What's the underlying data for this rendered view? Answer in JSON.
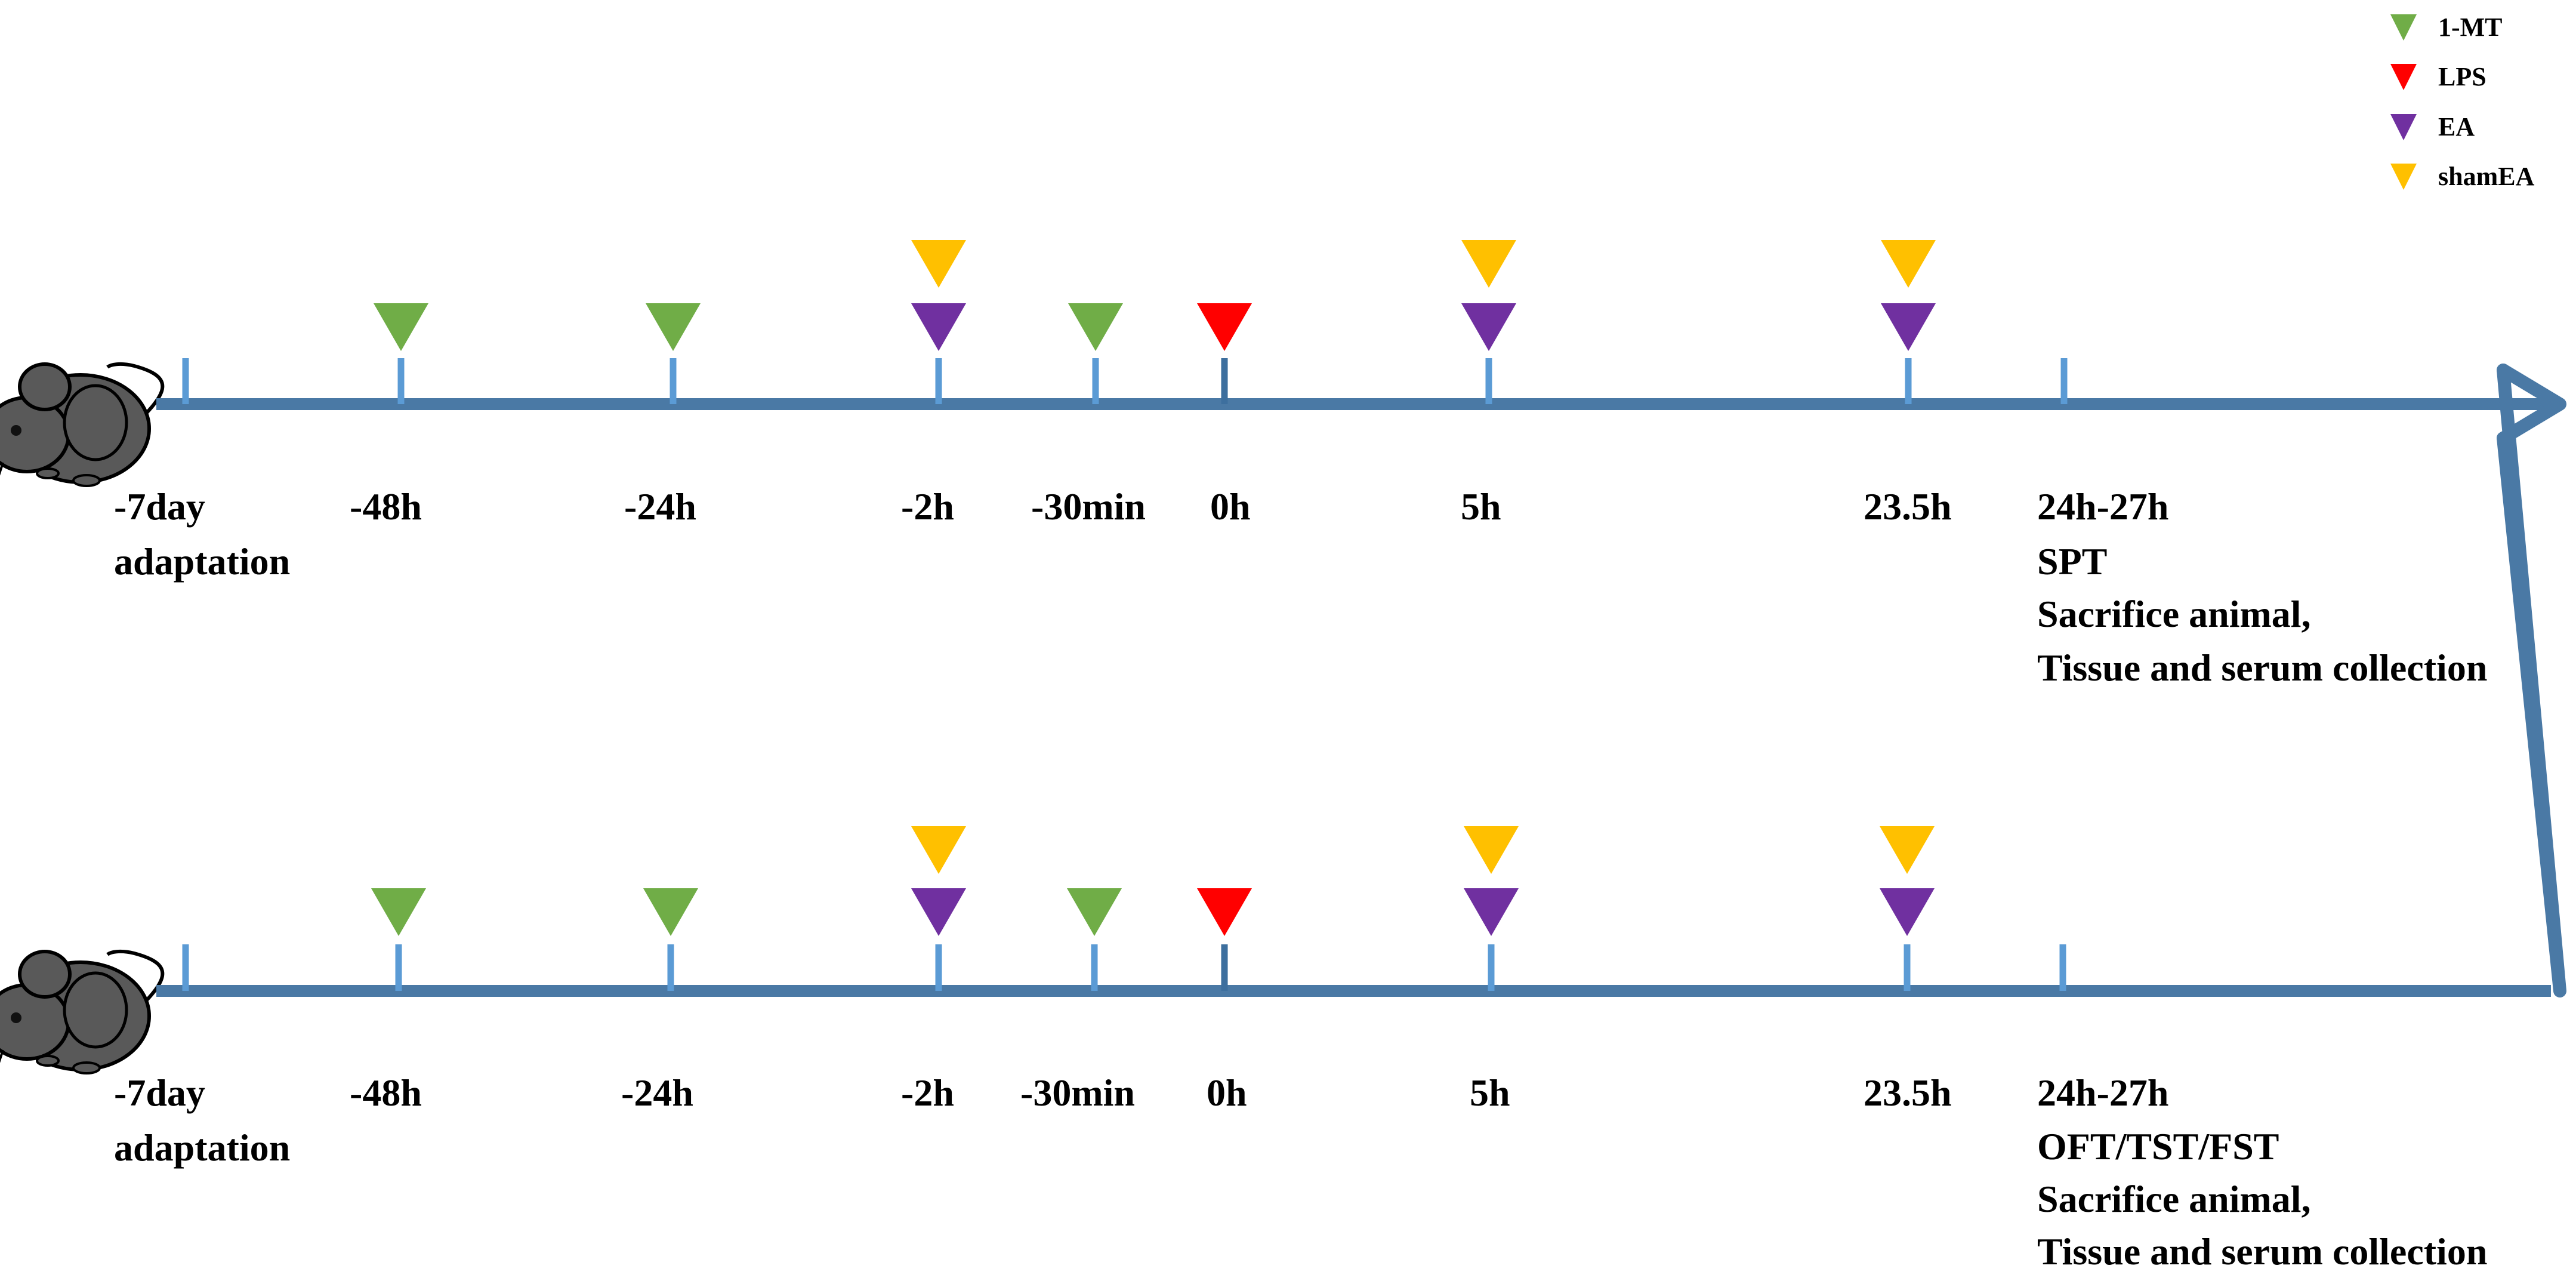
{
  "colors": {
    "axis": "#4a79a5",
    "tick": "#5b9bd5",
    "tick_zero": "#3d6f9e",
    "mt": "#70ad47",
    "lps": "#ff0000",
    "ea": "#7030a0",
    "shamea": "#ffc000",
    "mouse_body": "#595959",
    "mouse_outline": "#000000"
  },
  "legend": [
    {
      "key": "mt",
      "label": "1-MT",
      "color": "#70ad47"
    },
    {
      "key": "lps",
      "label": "LPS",
      "color": "#ff0000"
    },
    {
      "key": "ea",
      "label": "EA",
      "color": "#7030a0"
    },
    {
      "key": "shamea",
      "label": "shamEA",
      "color": "#ffc000"
    }
  ],
  "timelines": [
    {
      "id": "top",
      "labels": [
        "-7day",
        "-48h",
        "-24h",
        "-2h",
        "-30min",
        "0h",
        "5h",
        "23.5h",
        "24h-27h"
      ],
      "sub_left": "adaptation",
      "sub_right": [
        "SPT",
        "Sacrifice animal,",
        "Tissue and serum collection"
      ]
    },
    {
      "id": "bottom",
      "labels": [
        "-7day",
        "-48h",
        "-24h",
        "-2h",
        "-30min",
        "0h",
        "5h",
        "23.5h",
        "24h-27h"
      ],
      "sub_left": "adaptation",
      "sub_right": [
        "OFT/TST/FST",
        "Sacrifice animal,",
        "Tissue and serum collection"
      ]
    }
  ],
  "markers": {
    "-7day": [],
    "-48h": [
      "mt"
    ],
    "-24h": [
      "mt"
    ],
    "-2h": [
      "ea",
      "shamea"
    ],
    "-30min": [
      "mt"
    ],
    "0h": [
      "lps"
    ],
    "5h": [
      "ea",
      "shamea"
    ],
    "23.5h": [
      "ea",
      "shamea"
    ],
    "24h-27h": []
  },
  "icons": {
    "mouse": "mouse-icon",
    "arrowhead": "arrowhead-icon",
    "marker": "triangle-marker-icon"
  }
}
